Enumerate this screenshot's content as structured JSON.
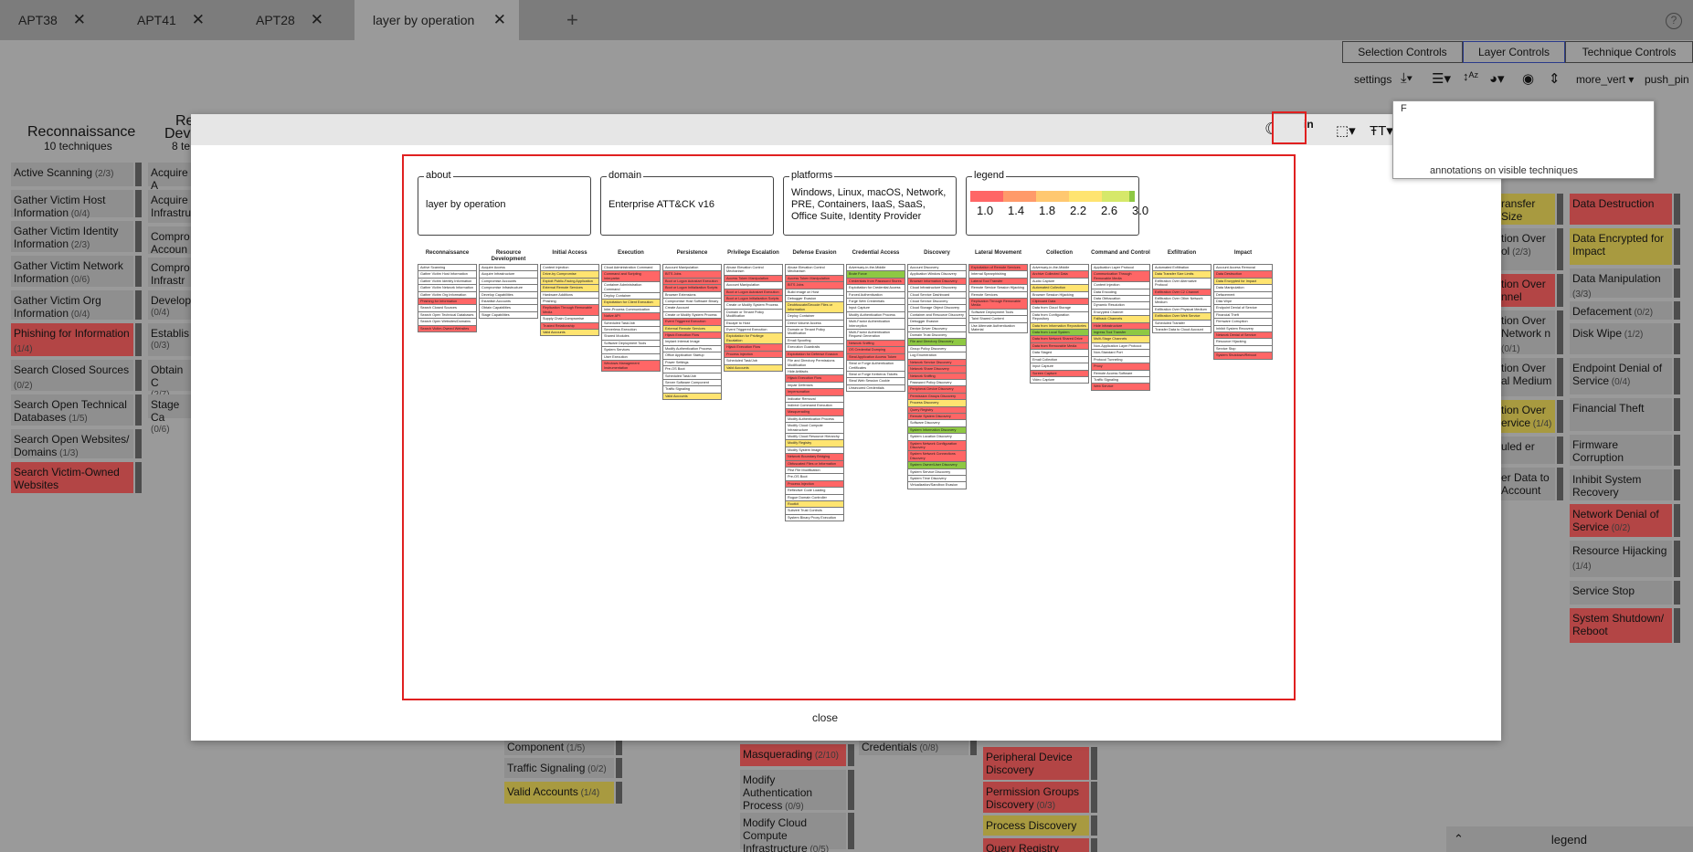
{
  "tabs": [
    {
      "label": "APT38"
    },
    {
      "label": "APT41"
    },
    {
      "label": "APT28"
    },
    {
      "label": "layer by operation"
    }
  ],
  "new_tab": "+",
  "help": "?",
  "controls": {
    "selection": "Selection Controls",
    "layer": "Layer Controls",
    "technique": "Technique Controls"
  },
  "toolbar": {
    "settings": "settings",
    "more_vert": "more_vert",
    "push_pin": "push_pin"
  },
  "background": {
    "tactics": [
      {
        "name": "Reconnaissance",
        "count": "10 techniques"
      },
      {
        "name": "Re",
        "sub": "Deve",
        "count": "8 te"
      }
    ],
    "recon": [
      {
        "label": "Active Scanning",
        "n": "(2/3)",
        "c": ""
      },
      {
        "label": "Gather Victim Host Information",
        "n": "(0/4)",
        "c": ""
      },
      {
        "label": "Gather Victim Identity Information",
        "n": "(2/3)",
        "c": ""
      },
      {
        "label": "Gather Victim Network Information",
        "n": "(0/6)",
        "c": ""
      },
      {
        "label": "Gather Victim Org Information",
        "n": "(0/4)",
        "c": ""
      },
      {
        "label": "Phishing for Information",
        "n": "(1/4)",
        "c": "red"
      },
      {
        "label": "Search Closed Sources",
        "n": "(0/2)",
        "c": ""
      },
      {
        "label": "Search Open Technical Databases",
        "n": "(1/5)",
        "c": ""
      },
      {
        "label": "Search Open Websites/ Domains",
        "n": "(1/3)",
        "c": ""
      },
      {
        "label": "Search Victim-Owned Websites",
        "n": "",
        "c": "red"
      }
    ],
    "resdev": [
      {
        "label": "Acquire A"
      },
      {
        "label": "Acquire Infrastru"
      },
      {
        "label": "Compro Accoun"
      },
      {
        "label": "Compro Infrastr"
      },
      {
        "label": "Develop",
        "n": "(0/4)"
      },
      {
        "label": "Establis",
        "n": "(0/3)"
      },
      {
        "label": "Obtain C",
        "n": "(2/7)"
      },
      {
        "label": "Stage Ca",
        "n": "(0/6)"
      }
    ],
    "right1": [
      {
        "label": "ransfer Size",
        "c": "yel"
      },
      {
        "label": "tion Over ol",
        "n": "(2/3)",
        "c": ""
      },
      {
        "label": "tion Over nnel",
        "c": "red"
      },
      {
        "label": "tion Over Network n",
        "n": "(0/1)",
        "c": ""
      },
      {
        "label": "tion Over al Medium",
        "c": ""
      },
      {
        "label": "tion Over ervice",
        "n": "(1/4)",
        "c": "yel"
      },
      {
        "label": "uled er",
        "c": ""
      },
      {
        "label": "er Data to Account",
        "c": ""
      }
    ],
    "impact": [
      {
        "label": "Data Destruction",
        "c": "red"
      },
      {
        "label": "Data Encrypted for Impact",
        "c": "yel"
      },
      {
        "label": "Data Manipulation",
        "n": "(3/3)",
        "c": ""
      },
      {
        "label": "Defacement",
        "n": "(0/2)",
        "c": ""
      },
      {
        "label": "Disk Wipe",
        "n": "(1/2)",
        "c": ""
      },
      {
        "label": "Endpoint Denial of Service",
        "n": "(0/4)",
        "c": ""
      },
      {
        "label": "Financial Theft",
        "c": ""
      },
      {
        "label": "Firmware Corruption",
        "c": ""
      },
      {
        "label": "Inhibit System Recovery",
        "c": ""
      },
      {
        "label": "Network Denial of Service",
        "n": "(0/2)",
        "c": "red"
      },
      {
        "label": "Resource Hijacking",
        "n": "(1/4)",
        "c": ""
      },
      {
        "label": "Service Stop",
        "c": ""
      },
      {
        "label": "System Shutdown/ Reboot",
        "c": "red"
      }
    ],
    "bottom": [
      {
        "label": "Component",
        "n": "(1/5)",
        "c": ""
      },
      {
        "label": "Traffic Signaling",
        "n": "(0/2)",
        "c": ""
      },
      {
        "label": "Valid Accounts",
        "n": "(1/4)",
        "c": "yel"
      },
      {
        "label": "Masquerading",
        "n": "(2/10)",
        "c": "red"
      },
      {
        "label": "Modify Authentication Process",
        "n": "(0/9)",
        "c": ""
      },
      {
        "label": "Modify Cloud Compute Infrastructure",
        "n": "(0/5)",
        "c": ""
      },
      {
        "label": "Credentials",
        "n": "(0/8)",
        "c": ""
      },
      {
        "label": "Peripheral Device Discovery",
        "c": "red"
      },
      {
        "label": "Permission Groups Discovery",
        "n": "(0/3)",
        "c": "red"
      },
      {
        "label": "Process Discovery",
        "c": "yel"
      },
      {
        "label": "Query Registry",
        "c": "red"
      }
    ],
    "legend": "legend"
  },
  "modal": {
    "toolbar": {
      "table_view": "table_view",
      "in": "in"
    },
    "tooltip": {
      "line1": "F",
      "line2": "annotations on visible techniques"
    },
    "about": {
      "label": "about",
      "text": "layer by operation"
    },
    "domain": {
      "label": "domain",
      "text": "Enterprise ATT&CK v16"
    },
    "platforms": {
      "label": "platforms",
      "text": "Windows, Linux, macOS, Network, PRE, Containers, IaaS, SaaS, Office Suite, Identity Provider"
    },
    "legend": {
      "label": "legend",
      "values": [
        "1.0",
        "1.4",
        "1.8",
        "2.2",
        "2.6",
        "3.0"
      ],
      "colors": [
        "#ff6666",
        "#ff9a6a",
        "#ffc870",
        "#ffe470",
        "#d6e86a",
        "#8ec843"
      ]
    },
    "close": "close",
    "matrix": [
      {
        "h": "Reconnaissance",
        "c": [
          "Active Scanning",
          "Gather Victim Host Information",
          "Gather Victim Identity Information",
          "Gather Victim Network Information",
          "Gather Victim Org Information",
          "Phishing for Information",
          "Search Closed Sources",
          "Search Open Technical Databases",
          "Search Open Websites/Domains",
          "Search Victim-Owned Websites"
        ],
        "r": [
          5,
          9
        ]
      },
      {
        "h": "Resource Development",
        "c": [
          "Acquire Access",
          "Acquire Infrastructure",
          "Compromise Accounts",
          "Compromise Infrastructure",
          "Develop Capabilities",
          "Establish Accounts",
          "Obtain Capabilities",
          "Stage Capabilities"
        ],
        "r": []
      },
      {
        "h": "Initial Access",
        "c": [
          "Content Injection",
          "Drive-by Compromise",
          "Exploit Public-Facing Application",
          "External Remote Services",
          "Hardware Additions",
          "Phishing",
          "Replication Through Removable Media",
          "Supply Chain Compromise",
          "Trusted Relationship",
          "Valid Accounts"
        ],
        "r": [
          6,
          8
        ],
        "y": [
          1,
          2,
          3,
          9
        ]
      },
      {
        "h": "Execution",
        "c": [
          "Cloud Administration Command",
          "Command and Scripting Interpreter",
          "Container Administration Command",
          "Deploy Container",
          "Exploitation for Client Execution",
          "Inter-Process Communication",
          "Native API",
          "Scheduled Task/Job",
          "Serverless Execution",
          "Shared Modules",
          "Software Deployment Tools",
          "System Services",
          "User Execution",
          "Windows Management Instrumentation"
        ],
        "r": [
          1,
          6,
          13
        ],
        "y": [
          4
        ]
      },
      {
        "h": "Persistence",
        "c": [
          "Account Manipulation",
          "BITS Jobs",
          "Boot or Logon Autostart Execution",
          "Boot or Logon Initialization Scripts",
          "Browser Extensions",
          "Compromise Host Software Binary",
          "Create Account",
          "Create or Modify System Process",
          "Event Triggered Execution",
          "External Remote Services",
          "Hijack Execution Flow",
          "Implant Internal Image",
          "Modify Authentication Process",
          "Office Application Startup",
          "Power Settings",
          "Pre-OS Boot",
          "Scheduled Task/Job",
          "Server Software Component",
          "Traffic Signaling",
          "Valid Accounts"
        ],
        "r": [
          1,
          2,
          3,
          8,
          10
        ],
        "y": [
          9,
          19
        ]
      },
      {
        "h": "Privilege Escalation",
        "c": [
          "Abuse Elevation Control Mechanism",
          "Access Token Manipulation",
          "Account Manipulation",
          "Boot or Logon Autostart Execution",
          "Boot or Logon Initialization Scripts",
          "Create or Modify System Process",
          "Domain or Tenant Policy Modification",
          "Escape to Host",
          "Event Triggered Execution",
          "Exploitation for Privilege Escalation",
          "Hijack Execution Flow",
          "Process Injection",
          "Scheduled Task/Job",
          "Valid Accounts"
        ],
        "r": [
          1,
          3,
          4,
          10,
          11
        ],
        "y": [
          9,
          13
        ]
      },
      {
        "h": "Defense Evasion",
        "c": [
          "Abuse Elevation Control Mechanism",
          "Access Token Manipulation",
          "BITS Jobs",
          "Build Image on Host",
          "Debugger Evasion",
          "Deobfuscate/Decode Files or Information",
          "Deploy Container",
          "Direct Volume Access",
          "Domain or Tenant Policy Modification",
          "Email Spoofing",
          "Execution Guardrails",
          "Exploitation for Defense Evasion",
          "File and Directory Permissions Modification",
          "Hide Artifacts",
          "Hijack Execution Flow",
          "Impair Defenses",
          "Impersonation",
          "Indicator Removal",
          "Indirect Command Execution",
          "Masquerading",
          "Modify Authentication Process",
          "Modify Cloud Compute Infrastructure",
          "Modify Cloud Resource Hierarchy",
          "Modify Registry",
          "Modify System Image",
          "Network Boundary Bridging",
          "Obfuscated Files or Information",
          "Plist File Modification",
          "Pre-OS Boot",
          "Process Injection",
          "Reflective Code Loading",
          "Rogue Domain Controller",
          "Rootkit",
          "Subvert Trust Controls",
          "System Binary Proxy Execution"
        ],
        "r": [
          1,
          2,
          11,
          14,
          16,
          19,
          25,
          26,
          29
        ],
        "y": [
          5,
          23,
          32
        ]
      },
      {
        "h": "Credential Access",
        "c": [
          "Adversary-in-the-Middle",
          "Brute Force",
          "Credentials from Password Stores",
          "Exploitation for Credential Access",
          "Forced Authentication",
          "Forge Web Credentials",
          "Input Capture",
          "Modify Authentication Process",
          "Multi-Factor Authentication Interception",
          "Multi-Factor Authentication Request Generation",
          "Network Sniffing",
          "OS Credential Dumping",
          "Steal Application Access Token",
          "Steal or Forge Authentication Certificates",
          "Steal or Forge Kerberos Tickets",
          "Steal Web Session Cookie",
          "Unsecured Credentials"
        ],
        "r": [
          2,
          10,
          11,
          12
        ],
        "g": [
          1
        ]
      },
      {
        "h": "Discovery",
        "c": [
          "Account Discovery",
          "Application Window Discovery",
          "Browser Information Discovery",
          "Cloud Infrastructure Discovery",
          "Cloud Service Dashboard",
          "Cloud Service Discovery",
          "Cloud Storage Object Discovery",
          "Container and Resource Discovery",
          "Debugger Evasion",
          "Device Driver Discovery",
          "Domain Trust Discovery",
          "File and Directory Discovery",
          "Group Policy Discovery",
          "Log Enumeration",
          "Network Service Discovery",
          "Network Share Discovery",
          "Network Sniffing",
          "Password Policy Discovery",
          "Peripheral Device Discovery",
          "Permission Groups Discovery",
          "Process Discovery",
          "Query Registry",
          "Remote System Discovery",
          "Software Discovery",
          "System Information Discovery",
          "System Location Discovery",
          "System Network Configuration Discovery",
          "System Network Connections Discovery",
          "System Owner/User Discovery",
          "System Service Discovery",
          "System Time Discovery",
          "Virtualization/Sandbox Evasion"
        ],
        "r": [
          2,
          14,
          15,
          16,
          18,
          19,
          21,
          22,
          26,
          27
        ],
        "y": [
          20
        ],
        "g": [
          11,
          24,
          28
        ]
      },
      {
        "h": "Lateral Movement",
        "c": [
          "Exploitation of Remote Services",
          "Internal Spearphishing",
          "Lateral Tool Transfer",
          "Remote Service Session Hijacking",
          "Remote Services",
          "Replication Through Removable Media",
          "Software Deployment Tools",
          "Taint Shared Content",
          "Use Alternate Authentication Material"
        ],
        "r": [
          0,
          2,
          5
        ]
      },
      {
        "h": "Collection",
        "c": [
          "Adversary-in-the-Middle",
          "Archive Collected Data",
          "Audio Capture",
          "Automated Collection",
          "Browser Session Hijacking",
          "Clipboard Data",
          "Data from Cloud Storage",
          "Data from Configuration Repository",
          "Data from Information Repositories",
          "Data from Local System",
          "Data from Network Shared Drive",
          "Data from Removable Media",
          "Data Staged",
          "Email Collection",
          "Input Capture",
          "Screen Capture",
          "Video Capture"
        ],
        "r": [
          1,
          5,
          10,
          11,
          15
        ],
        "y": [
          3,
          8
        ],
        "g": [
          9
        ]
      },
      {
        "h": "Command and Control",
        "c": [
          "Application Layer Protocol",
          "Communication Through Removable Media",
          "Content Injection",
          "Data Encoding",
          "Data Obfuscation",
          "Dynamic Resolution",
          "Encrypted Channel",
          "Fallback Channels",
          "Hide Infrastructure",
          "Ingress Tool Transfer",
          "Multi-Stage Channels",
          "Non-Application Layer Protocol",
          "Non-Standard Port",
          "Protocol Tunneling",
          "Proxy",
          "Remote Access Software",
          "Traffic Signaling",
          "Web Service"
        ],
        "r": [
          1,
          8,
          14,
          17
        ],
        "y": [
          7,
          10
        ],
        "g": [
          9
        ]
      },
      {
        "h": "Exfiltration",
        "c": [
          "Automated Exfiltration",
          "Data Transfer Size Limits",
          "Exfiltration Over Alternative Protocol",
          "Exfiltration Over C2 Channel",
          "Exfiltration Over Other Network Medium",
          "Exfiltration Over Physical Medium",
          "Exfiltration Over Web Service",
          "Scheduled Transfer",
          "Transfer Data to Cloud Account"
        ],
        "r": [
          3
        ],
        "y": [
          1,
          6
        ]
      },
      {
        "h": "Impact",
        "c": [
          "Account Access Removal",
          "Data Destruction",
          "Data Encrypted for Impact",
          "Data Manipulation",
          "Defacement",
          "Disk Wipe",
          "Endpoint Denial of Service",
          "Financial Theft",
          "Firmware Corruption",
          "Inhibit System Recovery",
          "Network Denial of Service",
          "Resource Hijacking",
          "Service Stop",
          "System Shutdown/Reboot"
        ],
        "r": [
          1,
          10,
          13
        ],
        "y": [
          2
        ]
      }
    ]
  }
}
